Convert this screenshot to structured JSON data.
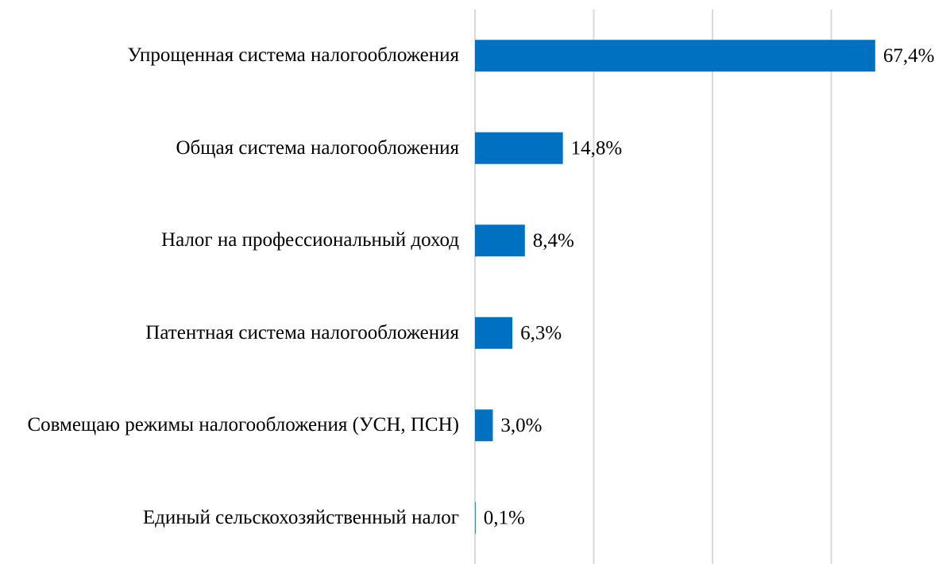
{
  "chart_data": {
    "type": "barh",
    "categories": [
      "Упрощенная система налогообложения",
      "Общая система налогообложения",
      "Налог на профессиональный доход",
      "Патентная система налогообложения",
      "Совмещаю режимы налогообложения (УСН, ПСН)",
      "Единый сельскохозяйственный налог"
    ],
    "values": [
      67.4,
      14.8,
      8.4,
      6.3,
      3.0,
      0.1
    ],
    "value_labels": [
      "67,4%",
      "14,8%",
      "8,4%",
      "6,3%",
      "3,0%",
      "0,1%"
    ],
    "color": "#0070c0",
    "xlim": [
      0,
      80
    ],
    "xticks": [
      0,
      20,
      40,
      60
    ],
    "grid": true
  }
}
